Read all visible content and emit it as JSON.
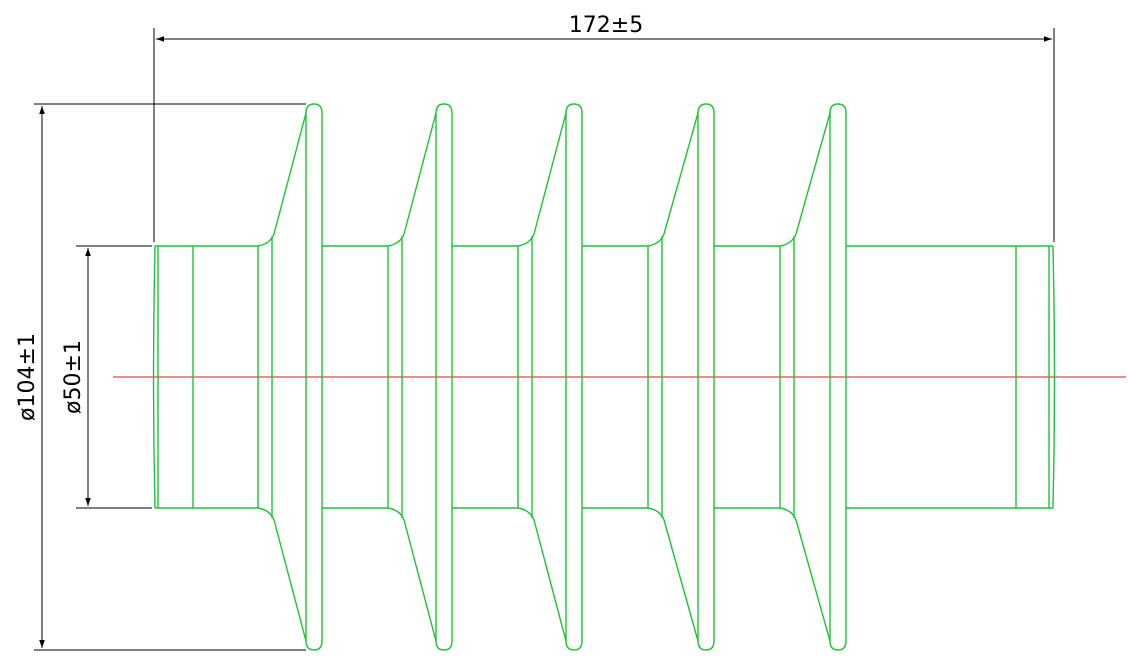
{
  "dimensions": {
    "overall_length": "172±5",
    "shed_diameter": "ø104±1",
    "core_diameter": "ø50±1"
  },
  "colors": {
    "outline": "#1fc13a",
    "centerline": "#e04848",
    "dimension": "#000000",
    "background": "#ffffff"
  },
  "sheds_count": 5
}
